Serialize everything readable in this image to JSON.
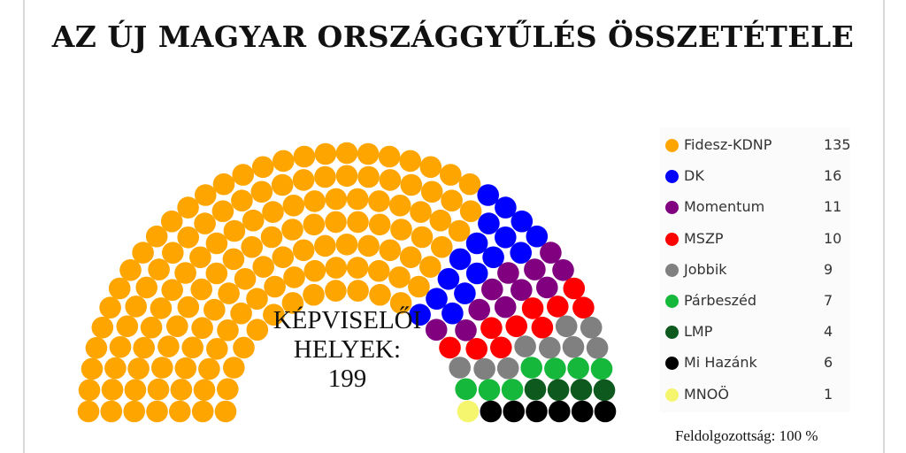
{
  "chart_data": {
    "type": "parliament",
    "title": "AZ ÚJ MAGYAR ORSZÁGGYŰLÉS ÖSSZETÉTELE",
    "center_label": [
      "KÉPVISELŐI",
      "HELYEK:",
      "199"
    ],
    "total_seats": 199,
    "legend_position": "right",
    "series": [
      {
        "name": "Fidesz-KDNP",
        "value": 135,
        "color": "#FFA500"
      },
      {
        "name": "DK",
        "value": 16,
        "color": "#0000FF"
      },
      {
        "name": "Momentum",
        "value": 11,
        "color": "#800080"
      },
      {
        "name": "MSZP",
        "value": 10,
        "color": "#FF0000"
      },
      {
        "name": "Jobbik",
        "value": 9,
        "color": "#808080"
      },
      {
        "name": "Párbeszéd",
        "value": 7,
        "color": "#15B83A"
      },
      {
        "name": "LMP",
        "value": 4,
        "color": "#0E5A1E"
      },
      {
        "name": "Mi Hazánk",
        "value": 6,
        "color": "#000000"
      },
      {
        "name": "MNOÖ",
        "value": 1,
        "color": "#F5F56E"
      }
    ]
  },
  "footer": {
    "status": "Feldolgozottság: 100 %"
  }
}
